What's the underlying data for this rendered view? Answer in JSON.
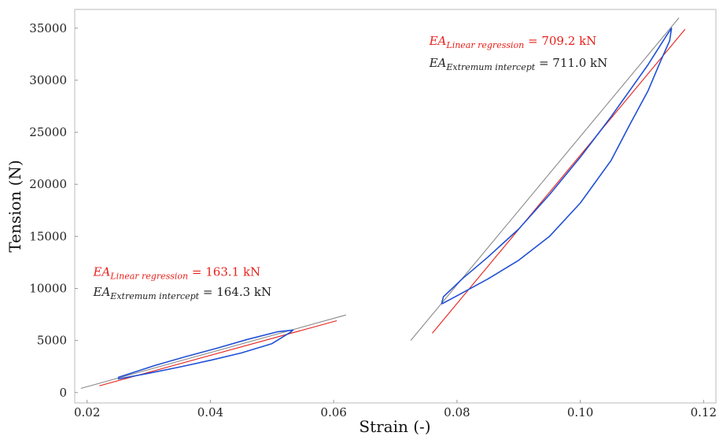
{
  "chart_data": {
    "type": "line",
    "title": "",
    "xlabel": "Strain (-)",
    "ylabel": "Tension (N)",
    "xlim": [
      0.018,
      0.122
    ],
    "ylim": [
      -1000,
      36800
    ],
    "x_ticks": [
      "0.02",
      "0.04",
      "0.06",
      "0.08",
      "0.10",
      "0.12"
    ],
    "y_ticks": [
      "0",
      "5000",
      "10000",
      "15000",
      "20000",
      "25000",
      "30000",
      "35000"
    ],
    "grid": false,
    "colors": {
      "measured": "#1f4fd6",
      "linear_regression": "#e8211b",
      "extremum_intercept": "#8a8a8a"
    },
    "series": [
      {
        "color": "blue",
        "x": [
          0.025,
          0.03,
          0.035,
          0.04,
          0.045,
          0.05,
          0.053,
          0.0534,
          0.051,
          0.046,
          0.041,
          0.036,
          0.031,
          0.025
        ],
        "y": [
          1300,
          1850,
          2450,
          3100,
          3800,
          4700,
          5800,
          6000,
          5850,
          5100,
          4250,
          3450,
          2600,
          1450
        ]
      },
      {
        "color": "blue",
        "x": [
          0.0775,
          0.08,
          0.085,
          0.09,
          0.095,
          0.1,
          0.105,
          0.108,
          0.111,
          0.113,
          0.1145,
          0.1148,
          0.114,
          0.111,
          0.108,
          0.105,
          0.1,
          0.095,
          0.09,
          0.085,
          0.081,
          0.0778,
          0.0775
        ],
        "y": [
          8500,
          9300,
          10900,
          12700,
          15000,
          18200,
          22300,
          25700,
          29000,
          31800,
          33800,
          35000,
          34300,
          31500,
          29000,
          26500,
          22600,
          19000,
          15700,
          13000,
          11000,
          9200,
          8500
        ]
      },
      {
        "color": "red",
        "x": [
          0.022,
          0.0605
        ],
        "y": [
          650,
          6900
        ]
      },
      {
        "color": "gray",
        "x": [
          0.019,
          0.062
        ],
        "y": [
          400,
          7450
        ]
      },
      {
        "color": "red",
        "x": [
          0.076,
          0.117
        ],
        "y": [
          5700,
          34900
        ]
      },
      {
        "color": "gray",
        "x": [
          0.0725,
          0.116
        ],
        "y": [
          5000,
          36000
        ]
      }
    ],
    "annotations": [
      {
        "id": "low-linear",
        "color": "red",
        "symbol": "EA",
        "subscript": "Linear regression",
        "value": " = 163.1 kN",
        "x": 0.021,
        "y": 11200
      },
      {
        "id": "low-extremum",
        "color": "black",
        "symbol": "EA",
        "subscript": "Extremum intercept",
        "value": " = 164.3 kN",
        "x": 0.021,
        "y": 9300
      },
      {
        "id": "high-linear",
        "color": "red",
        "symbol": "EA",
        "subscript": "Linear regression",
        "value": " = 709.2 kN",
        "x": 0.0755,
        "y": 33400
      },
      {
        "id": "high-extremum",
        "color": "black",
        "symbol": "EA",
        "subscript": "Extremum intercept",
        "value": " = 711.0 kN",
        "x": 0.0755,
        "y": 31300
      }
    ]
  }
}
